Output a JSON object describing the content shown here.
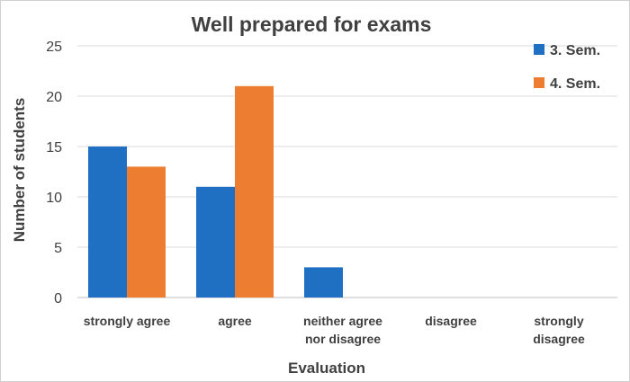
{
  "chart_data": {
    "type": "bar",
    "title": "Well prepared for exams",
    "xlabel": "Evaluation",
    "ylabel": "Number of students",
    "categories": [
      [
        "strongly agree"
      ],
      [
        "agree"
      ],
      [
        "neither agree",
        "nor disagree"
      ],
      [
        "disagree"
      ],
      [
        "strongly",
        "disagree"
      ]
    ],
    "series": [
      {
        "name": "3. Sem.",
        "color": "#1f6fc2",
        "values": [
          15,
          11,
          3,
          0,
          0
        ]
      },
      {
        "name": "4. Sem.",
        "color": "#ed7d31",
        "values": [
          13,
          21,
          0,
          0,
          0
        ]
      }
    ],
    "ylim": [
      0,
      25
    ],
    "yticks": [
      0,
      5,
      10,
      15,
      20,
      25
    ],
    "grid": true,
    "legend_position": "top-right"
  }
}
